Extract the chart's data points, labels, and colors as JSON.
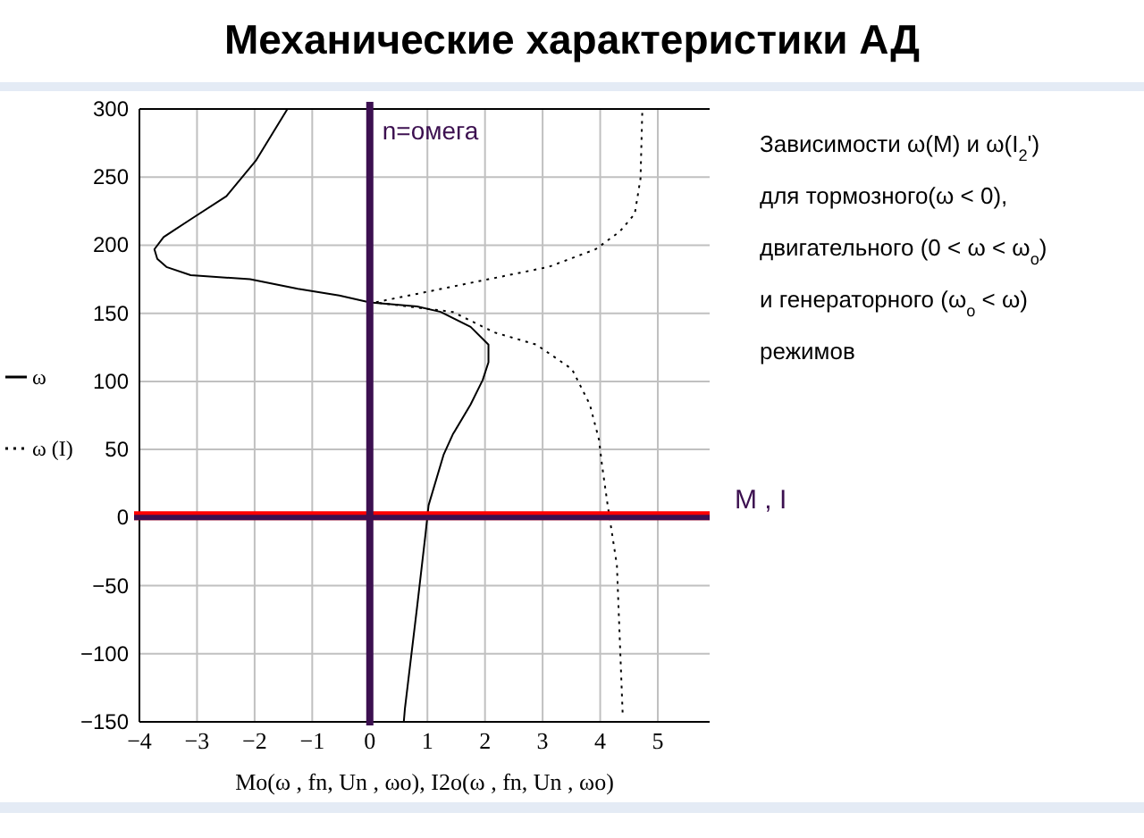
{
  "chart_data": {
    "type": "line",
    "title": "Механические характеристики АД",
    "xlabel": "Mo(ω , fn, Un , ωo), I2o(ω , fn, Un , ωo)",
    "xlim": [
      -4,
      5.9
    ],
    "xticks": [
      -4,
      -3,
      -2,
      -1,
      0,
      1,
      2,
      3,
      4,
      5
    ],
    "ylim": [
      -150,
      300
    ],
    "yticks": [
      -150,
      -100,
      -50,
      0,
      50,
      100,
      150,
      200,
      250,
      300
    ],
    "grid": true,
    "legend": "left",
    "series": [
      {
        "name": "ω",
        "color": "#000000",
        "line_style": "solid",
        "x": [
          -1.43,
          -1.98,
          -2.49,
          -3.11,
          -3.58,
          -3.74,
          -3.69,
          -3.53,
          -3.11,
          -2.08,
          -1.25,
          -0.53,
          0,
          0.82,
          1.23,
          1.75,
          2.06,
          2.06,
          1.96,
          1.75,
          1.44,
          1.28,
          1.02,
          0.97,
          0.82,
          0.61,
          0.59
        ],
        "values": [
          300,
          262,
          236,
          219,
          206,
          197,
          190,
          184,
          178,
          175,
          168,
          163,
          158,
          155,
          151,
          140,
          127,
          114,
          101,
          83,
          61,
          46,
          9,
          -11,
          -66,
          -140,
          -150
        ]
      },
      {
        "name": "ω (I)",
        "color": "#000000",
        "line_style": "dotted",
        "x": [
          4.73,
          4.7,
          4.6,
          4.34,
          3.92,
          3.1,
          2.06,
          1.02,
          0.09,
          1.44,
          2.16,
          2.89,
          3.51,
          3.82,
          3.98,
          4.03,
          4.13,
          4.29,
          4.39
        ],
        "values": [
          297,
          249,
          223,
          210,
          197,
          184,
          175,
          166,
          158,
          151,
          136,
          127,
          109,
          83,
          57,
          39,
          9,
          -35,
          -144
        ]
      }
    ],
    "ref_lines": [
      {
        "axis": "y",
        "value": 0,
        "color": "#ff0000"
      },
      {
        "axis": "y",
        "value": 0,
        "label": "M , I",
        "color": "#3c1050"
      },
      {
        "axis": "x",
        "value": 0,
        "label": "n=омега",
        "color": "#3c1050"
      }
    ],
    "annotations": [
      "Зависимости ω(M) и ω(I$_{2}$')",
      "для тормозного(ω < 0),",
      "двигательного (0 < ω < ω$_{o}$)",
      "и генераторного  (ω$_{o}$ < ω)",
      "режимов"
    ]
  }
}
